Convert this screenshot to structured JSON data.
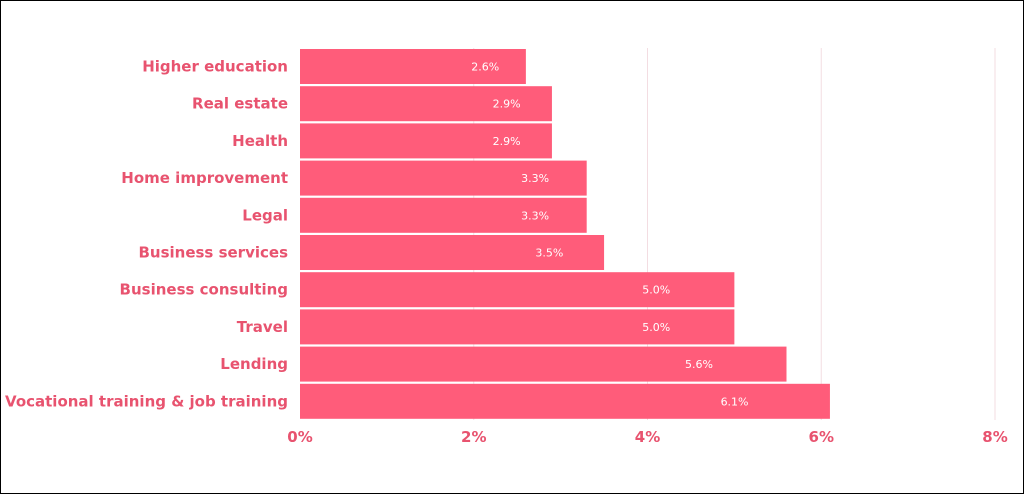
{
  "chart_data": {
    "type": "bar",
    "orientation": "horizontal",
    "title": "",
    "xlabel": "",
    "ylabel": "",
    "categories": [
      "Higher education",
      "Real estate",
      "Health",
      "Home improvement",
      "Legal",
      "Business services",
      "Business consulting",
      "Travel",
      "Lending",
      "Vocational training & job training"
    ],
    "values": [
      2.6,
      2.9,
      2.9,
      3.3,
      3.3,
      3.5,
      5.0,
      5.0,
      5.6,
      6.1
    ],
    "value_labels": [
      "2.6%",
      "2.9%",
      "2.9%",
      "3.3%",
      "3.3%",
      "3.5%",
      "5.0%",
      "5.0%",
      "5.6%",
      "6.1%"
    ],
    "xlim": [
      0,
      8
    ],
    "x_ticks": [
      0,
      2,
      4,
      6,
      8
    ],
    "x_tick_labels": [
      "0%",
      "2%",
      "4%",
      "6%",
      "8%"
    ],
    "grid": "vertical",
    "legend": "none",
    "colors": {
      "bar": "#ff5c7a",
      "label": "#e8536f",
      "value_text": "#ffffff",
      "grid": "#f3dde2"
    }
  }
}
